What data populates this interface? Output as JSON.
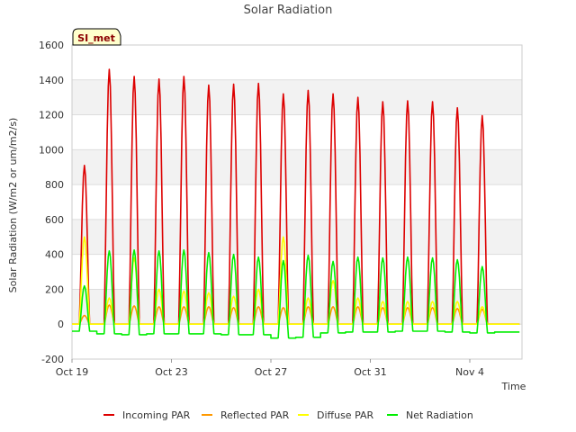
{
  "chart_data": {
    "type": "line",
    "title": "Solar Radiation",
    "xlabel": "Time",
    "ylabel": "Solar Radiation (W/m2 or um/m2/s)",
    "badge": "SI_met",
    "ylim": [
      -200,
      1600
    ],
    "y_ticks": [
      -200,
      0,
      200,
      400,
      600,
      800,
      1000,
      1200,
      1400,
      1600
    ],
    "x_ticks": [
      "Oct 19",
      "Oct 23",
      "Oct 27",
      "Oct 31",
      "Nov 4"
    ],
    "x_tick_days": [
      0,
      4,
      8,
      12,
      16
    ],
    "xlim_days": [
      0,
      18.1
    ],
    "grid": true,
    "legend_position": "bottom",
    "days": [
      "Oct 19",
      "Oct 20",
      "Oct 21",
      "Oct 22",
      "Oct 23",
      "Oct 24",
      "Oct 25",
      "Oct 26",
      "Oct 27",
      "Oct 28",
      "Oct 29",
      "Oct 30",
      "Oct 31",
      "Nov 1",
      "Nov 2",
      "Nov 3",
      "Nov 4",
      "Nov 5"
    ],
    "series": [
      {
        "name": "Incoming PAR",
        "color": "#dd0000",
        "daily_peak": [
          910,
          1460,
          1420,
          1405,
          1420,
          1370,
          1375,
          1380,
          1320,
          1340,
          1320,
          1300,
          1275,
          1280,
          1275,
          1240,
          1195,
          0
        ],
        "night": 0
      },
      {
        "name": "Reflected PAR",
        "color": "#ff9900",
        "daily_peak": [
          50,
          110,
          105,
          100,
          100,
          100,
          95,
          100,
          95,
          100,
          100,
          100,
          95,
          95,
          95,
          90,
          85,
          0
        ],
        "night": 0
      },
      {
        "name": "Diffuse PAR",
        "color": "#ffff00",
        "daily_peak": [
          500,
          150,
          380,
          200,
          190,
          180,
          160,
          200,
          500,
          150,
          250,
          150,
          130,
          130,
          130,
          130,
          100,
          0
        ],
        "night": 0
      },
      {
        "name": "Net Radiation",
        "color": "#00ee00",
        "daily_peak": [
          220,
          420,
          425,
          420,
          425,
          410,
          400,
          385,
          365,
          395,
          360,
          385,
          380,
          385,
          380,
          370,
          330,
          0
        ],
        "night": [
          -40,
          -55,
          -60,
          -55,
          -55,
          -55,
          -60,
          -60,
          -80,
          -75,
          -50,
          -45,
          -45,
          -40,
          -40,
          -45,
          -50,
          -45
        ]
      }
    ]
  }
}
